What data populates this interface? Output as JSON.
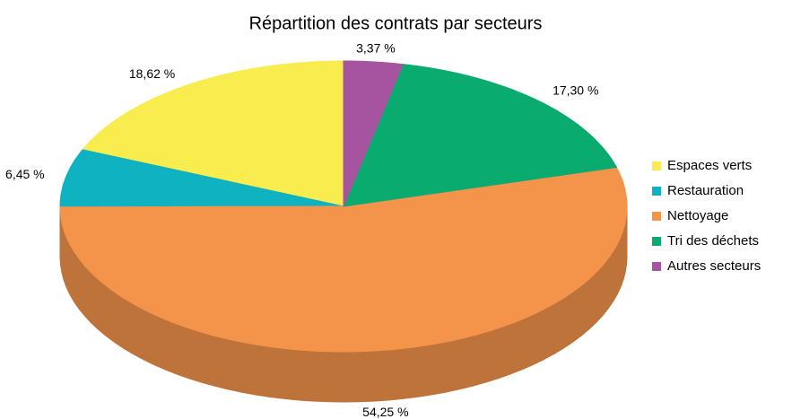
{
  "chart_data": {
    "type": "pie",
    "title": "Répartition des contrats par secteurs",
    "categories": [
      "Espaces verts",
      "Restauration",
      "Nettoyage",
      "Tri des déchets",
      "Autres secteurs"
    ],
    "values": [
      18.62,
      6.45,
      54.25,
      17.3,
      3.37
    ],
    "value_labels": [
      "18,62 %",
      "6,45 %",
      "54,25 %",
      "17,30 %",
      "3,37 %"
    ],
    "colors": [
      "#f9ec4e",
      "#0fb2c0",
      "#f4944b",
      "#0aab6e",
      "#a6549f"
    ],
    "legend": "right"
  }
}
